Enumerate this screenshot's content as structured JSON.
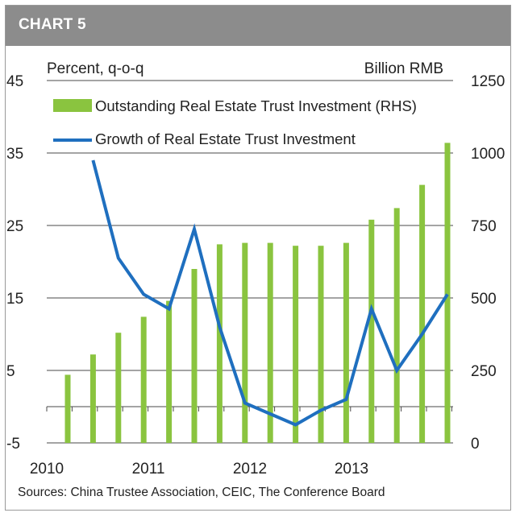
{
  "header": {
    "title": "CHART 5"
  },
  "source": "Sources: China Trustee Association, CEIC, The Conference Board",
  "chart_data": {
    "type": "bar+line",
    "left_axis_label": "Percent, q-o-q",
    "right_axis_label": "Billion RMB",
    "x_tick_labels": [
      "2010",
      "2011",
      "2012",
      "2013"
    ],
    "left_ticks": [
      -5,
      5,
      15,
      25,
      35,
      45
    ],
    "left_tick_labels": [
      "-5",
      "5",
      "15",
      "25",
      "35",
      "45"
    ],
    "right_ticks": [
      0,
      250,
      500,
      750,
      1000,
      1250
    ],
    "right_tick_labels": [
      "0",
      "250",
      "500",
      "750",
      "1000",
      "1250"
    ],
    "left_ylim": [
      -5,
      45
    ],
    "right_ylim": [
      0,
      1250
    ],
    "grid": "horizontal",
    "legend_position": "top-right",
    "categories": [
      "2010Q1",
      "2010Q2",
      "2010Q3",
      "2010Q4",
      "2011Q1",
      "2011Q2",
      "2011Q3",
      "2011Q4",
      "2012Q1",
      "2012Q2",
      "2012Q3",
      "2012Q4",
      "2013Q1",
      "2013Q2",
      "2013Q3",
      "2013Q4"
    ],
    "series": [
      {
        "name": "Outstanding Real Estate Trust Investment (RHS)",
        "type": "bar",
        "axis": "right",
        "color": "#8ac43f",
        "values": [
          235,
          305,
          380,
          435,
          490,
          600,
          685,
          690,
          690,
          680,
          680,
          690,
          770,
          810,
          890,
          1035
        ]
      },
      {
        "name": "Growth of Real Estate Trust Investment",
        "type": "line",
        "axis": "left",
        "color": "#1f6fbf",
        "values": [
          null,
          34,
          20.5,
          15.5,
          13.5,
          24.5,
          11,
          0.5,
          -1,
          -2.5,
          -0.5,
          1,
          13.5,
          5,
          10,
          15.5
        ]
      }
    ]
  }
}
